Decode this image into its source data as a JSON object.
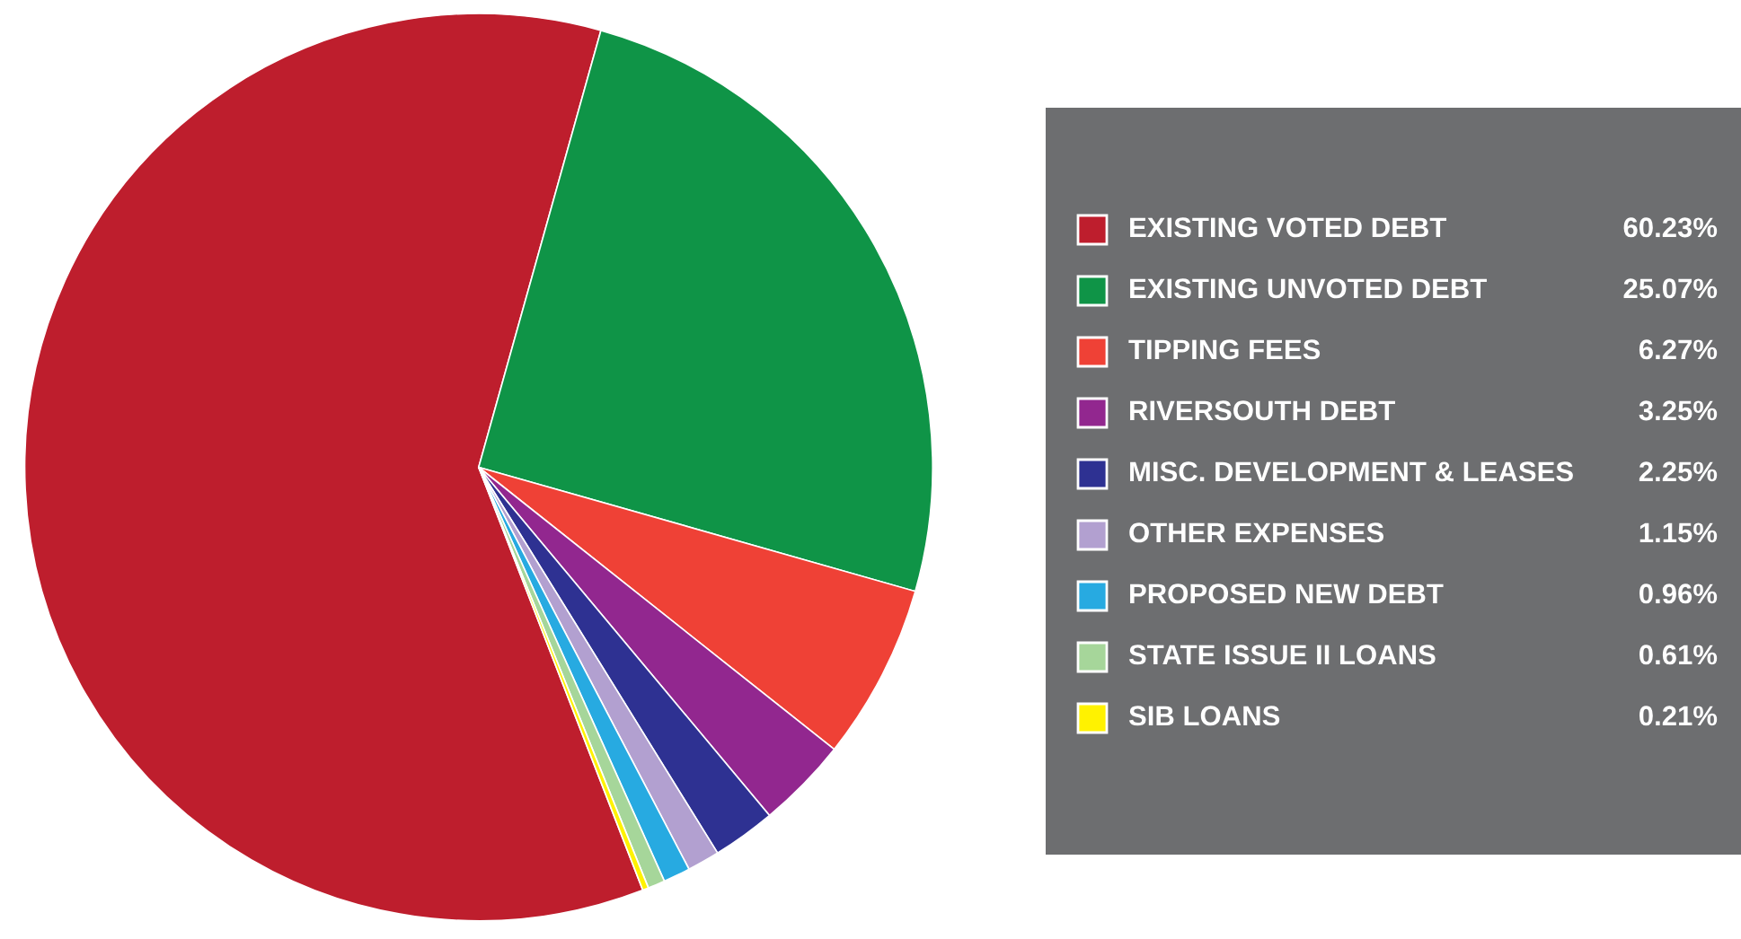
{
  "chart_data": {
    "type": "pie",
    "categories": [
      "EXISTING VOTED DEBT",
      "EXISTING UNVOTED DEBT",
      "TIPPING FEES",
      "RIVERSOUTH DEBT",
      "MISC. DEVELOPMENT & LEASES",
      "OTHER EXPENSES",
      "PROPOSED NEW DEBT",
      "STATE ISSUE II LOANS",
      "SIB LOANS"
    ],
    "values": [
      60.23,
      25.07,
      6.27,
      3.25,
      2.25,
      1.15,
      0.96,
      0.61,
      0.21
    ],
    "colors": [
      "#be1e2d",
      "#0f9447",
      "#ef4136",
      "#92278f",
      "#2e3192",
      "#b2a0d0",
      "#27aae1",
      "#a6d69a",
      "#fff200"
    ],
    "value_labels": [
      "60.23%",
      "25.07%",
      "6.27%",
      "3.25%",
      "2.25%",
      "1.15%",
      "0.96%",
      "0.61%",
      "0.21%"
    ],
    "legend": "right"
  }
}
